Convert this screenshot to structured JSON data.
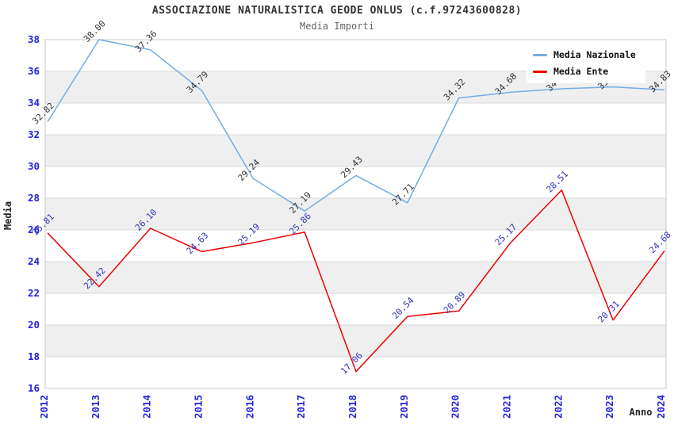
{
  "header": {
    "title": "ASSOCIAZIONE NATURALISTICA GEODE ONLUS (c.f.97243600828)",
    "subtitle": "Media Importi"
  },
  "colors": {
    "band_gray": "#efefef",
    "gridline": "#d9d9d9",
    "plot_border": "#c9c9c9",
    "axis_tick_blue": "#2222dd",
    "axis_title": "#222222",
    "nazionale_line": "#74abe2",
    "nazionale_label": "#333333",
    "ente_line": "#ee0000",
    "ente_label": "#3333bb"
  },
  "chart_data": {
    "type": "line",
    "x": [
      2012,
      2013,
      2014,
      2015,
      2016,
      2017,
      2018,
      2019,
      2020,
      2021,
      2022,
      2023,
      2024
    ],
    "xlabel": "Anno",
    "ylabel": "Media",
    "ylim": [
      16,
      38
    ],
    "ytick_step": 2,
    "grid": "horizontal-bands-alternating",
    "legend_position": "top-right-overlapping-plot",
    "series": [
      {
        "name": "Media Nazionale",
        "color": "#74abe2",
        "label_color": "#333333",
        "values": [
          32.82,
          38.0,
          37.36,
          34.79,
          29.24,
          27.19,
          29.43,
          27.71,
          34.32,
          34.68,
          34.9,
          35.02,
          34.83
        ],
        "labels_hidden_by_legend_indices": [
          10,
          11
        ],
        "estimated_indices": [
          10,
          11
        ]
      },
      {
        "name": "Media Ente",
        "color": "#ee0000",
        "label_color": "#3333bb",
        "values": [
          25.81,
          22.42,
          26.1,
          24.63,
          25.19,
          25.86,
          17.06,
          20.54,
          20.89,
          25.17,
          28.51,
          20.31,
          24.68
        ],
        "labels_hidden_by_legend_indices": []
      }
    ]
  }
}
